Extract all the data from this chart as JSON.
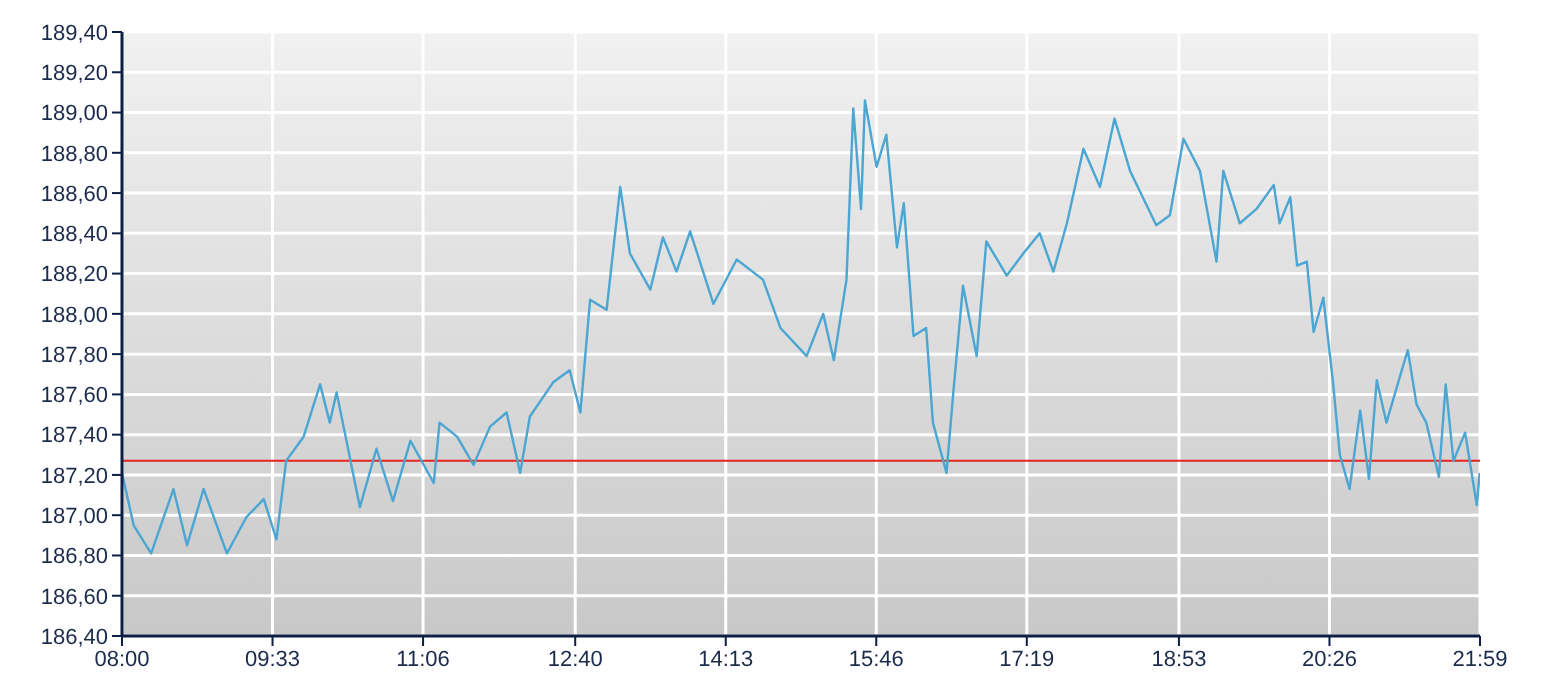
{
  "chart_data": {
    "type": "line",
    "x": [
      8.0,
      8.12,
      8.3,
      8.53,
      8.67,
      8.84,
      9.08,
      9.28,
      9.46,
      9.59,
      9.69,
      9.87,
      10.04,
      10.14,
      10.21,
      10.45,
      10.62,
      10.79,
      10.97,
      11.21,
      11.27,
      11.45,
      11.62,
      11.79,
      11.96,
      12.1,
      12.2,
      12.44,
      12.61,
      12.72,
      12.82,
      12.99,
      13.13,
      13.23,
      13.44,
      13.57,
      13.71,
      13.85,
      14.09,
      14.33,
      14.6,
      14.78,
      15.05,
      15.22,
      15.33,
      15.46,
      15.53,
      15.61,
      15.65,
      15.77,
      15.87,
      15.98,
      16.05,
      16.15,
      16.28,
      16.35,
      16.49,
      16.56,
      16.66,
      16.8,
      16.9,
      17.11,
      17.28,
      17.45,
      17.59,
      17.73,
      17.9,
      18.07,
      18.22,
      18.38,
      18.65,
      18.79,
      18.93,
      19.1,
      19.27,
      19.34,
      19.51,
      19.68,
      19.86,
      19.92,
      20.03,
      20.1,
      20.2,
      20.27,
      20.37,
      20.47,
      20.54,
      20.64,
      20.75,
      20.84,
      20.92,
      21.02,
      21.19,
      21.24,
      21.33,
      21.43,
      21.56,
      21.63,
      21.71,
      21.83,
      21.92,
      21.95,
      21.98
    ],
    "series": [
      {
        "color": "#4ba6d3",
        "values": [
          187.21,
          186.95,
          186.81,
          187.13,
          186.85,
          187.13,
          186.81,
          186.99,
          187.08,
          186.88,
          187.27,
          187.39,
          187.65,
          187.46,
          187.61,
          187.04,
          187.33,
          187.07,
          187.37,
          187.16,
          187.46,
          187.39,
          187.25,
          187.44,
          187.51,
          187.21,
          187.49,
          187.66,
          187.72,
          187.51,
          188.07,
          188.02,
          188.63,
          188.3,
          188.12,
          188.38,
          188.21,
          188.41,
          188.05,
          188.27,
          188.17,
          187.93,
          187.79,
          188.0,
          187.77,
          188.17,
          189.02,
          188.52,
          189.06,
          188.73,
          188.89,
          188.33,
          188.55,
          187.89,
          187.93,
          187.46,
          187.21,
          187.61,
          188.14,
          187.79,
          188.36,
          188.19,
          188.3,
          188.4,
          188.21,
          188.45,
          188.82,
          188.63,
          188.97,
          188.71,
          188.44,
          188.49,
          188.87,
          188.71,
          188.26,
          188.71,
          188.45,
          188.52,
          188.64,
          188.45,
          188.58,
          188.24,
          188.26,
          187.91,
          188.08,
          187.66,
          187.3,
          187.13,
          187.52,
          187.18,
          187.67,
          187.46,
          187.74,
          187.82,
          187.55,
          187.46,
          187.19,
          187.65,
          187.27,
          187.41,
          187.14,
          187.05,
          187.21
        ]
      }
    ],
    "xlim": [
      8,
      21.9833
    ],
    "xticks": [
      {
        "value": 8,
        "label": "08:00"
      },
      {
        "value": 9.55,
        "label": "09:33"
      },
      {
        "value": 11.1,
        "label": "11:06"
      },
      {
        "value": 12.6667,
        "label": "12:40"
      },
      {
        "value": 14.2167,
        "label": "14:13"
      },
      {
        "value": 15.7667,
        "label": "15:46"
      },
      {
        "value": 17.3167,
        "label": "17:19"
      },
      {
        "value": 18.8833,
        "label": "18:53"
      },
      {
        "value": 20.4333,
        "label": "20:26"
      },
      {
        "value": 21.9833,
        "label": "21:59"
      }
    ],
    "ylim": [
      186.4,
      189.4
    ],
    "yticks": [
      {
        "value": 186.4,
        "label": "186,40"
      },
      {
        "value": 186.6,
        "label": "186,60"
      },
      {
        "value": 186.8,
        "label": "186,80"
      },
      {
        "value": 187.0,
        "label": "187,00"
      },
      {
        "value": 187.2,
        "label": "187,20"
      },
      {
        "value": 187.4,
        "label": "187,40"
      },
      {
        "value": 187.6,
        "label": "187,60"
      },
      {
        "value": 187.8,
        "label": "187,80"
      },
      {
        "value": 188.0,
        "label": "188,00"
      },
      {
        "value": 188.2,
        "label": "188,20"
      },
      {
        "value": 188.4,
        "label": "188,40"
      },
      {
        "value": 188.6,
        "label": "188,60"
      },
      {
        "value": 188.8,
        "label": "188,80"
      },
      {
        "value": 189.0,
        "label": "189,00"
      },
      {
        "value": 189.2,
        "label": "189,20"
      },
      {
        "value": 189.4,
        "label": "189,40"
      }
    ],
    "ref_lines": [
      {
        "axis": "y",
        "value": 187.27,
        "color": "#e8231f"
      }
    ],
    "grid": true,
    "marker": "none",
    "line_style": "solid"
  }
}
